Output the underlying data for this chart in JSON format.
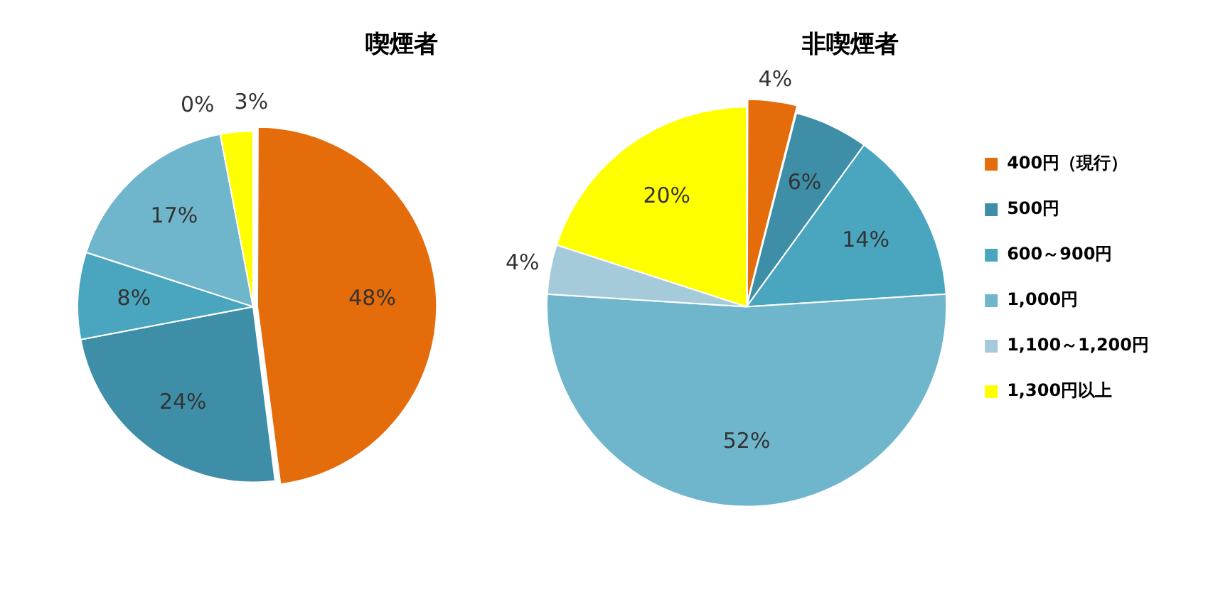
{
  "chart_data": {
    "type": "pie",
    "categories": [
      "400円（現行）",
      "500円",
      "600～900円",
      "1,000円",
      "1,100～1,200円",
      "1,300円以上"
    ],
    "colors": [
      "#e46c0a",
      "#3e8ea8",
      "#4aa5bf",
      "#6fb6cd",
      "#a5cbdb",
      "#ffff00"
    ],
    "legend": "right",
    "series": [
      {
        "name": "喫煙者",
        "values": [
          48,
          24,
          8,
          17,
          0,
          3
        ],
        "value_labels": [
          "48%",
          "24%",
          "8%",
          "17%",
          "0%",
          "3%"
        ]
      },
      {
        "name": "非喫煙者",
        "values": [
          4,
          6,
          14,
          52,
          4,
          20
        ],
        "value_labels": [
          "4%",
          "6%",
          "14%",
          "52%",
          "4%",
          "20%"
        ]
      }
    ]
  }
}
